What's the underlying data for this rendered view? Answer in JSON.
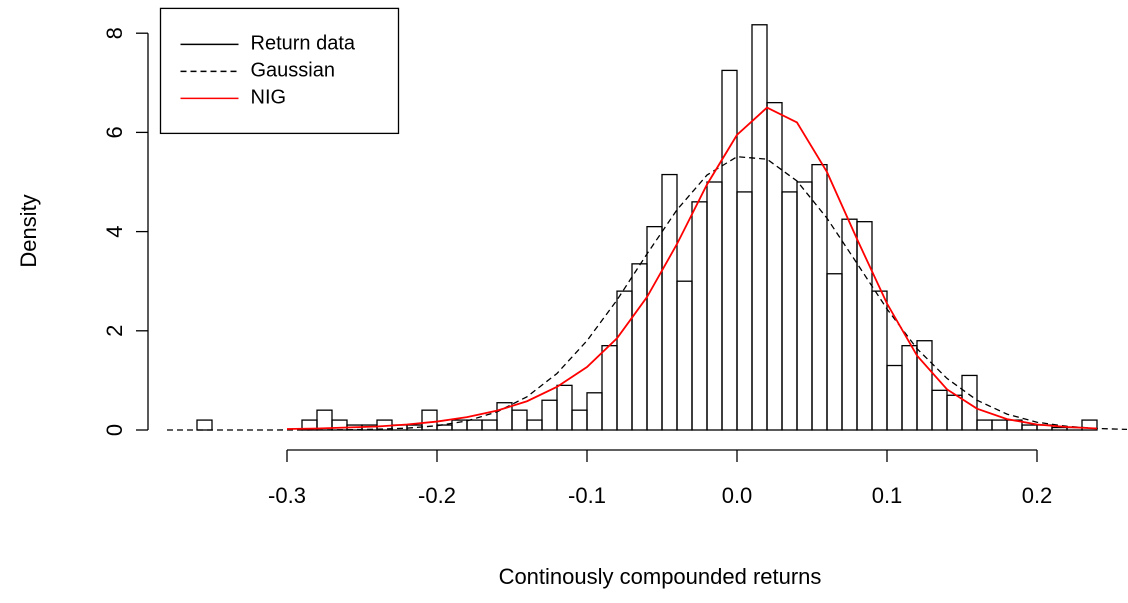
{
  "chart_data": {
    "type": "histogram",
    "xlabel": "Continously compounded returns",
    "ylabel": "Density",
    "xlim": [
      -0.385,
      0.26
    ],
    "ylim": [
      0,
      8.5
    ],
    "xticks": [
      -0.3,
      -0.2,
      -0.1,
      {
        "value": 0,
        "label": "0.0"
      },
      0.1,
      0.2
    ],
    "yticks": [
      0,
      2,
      4,
      6,
      8
    ],
    "legend": "top-left",
    "histogram": {
      "name": "Return data",
      "color": "#000000",
      "bins": [
        -0.36,
        -0.35,
        -0.34,
        -0.33,
        -0.32,
        -0.31,
        -0.3,
        -0.29,
        -0.28,
        -0.27,
        -0.26,
        -0.25,
        -0.24,
        -0.23,
        -0.22,
        -0.21,
        -0.2,
        -0.19,
        -0.18,
        -0.17,
        -0.16,
        -0.15,
        -0.14,
        -0.13,
        -0.12,
        -0.11,
        -0.1,
        -0.09,
        -0.08,
        -0.07,
        -0.06,
        -0.05,
        -0.04,
        -0.03,
        -0.02,
        -0.01,
        0.0,
        0.01,
        0.02,
        0.03,
        0.04,
        0.05,
        0.06,
        0.07,
        0.08,
        0.09,
        0.1,
        0.11,
        0.12,
        0.13,
        0.14,
        0.15,
        0.16,
        0.17,
        0.18,
        0.19,
        0.2,
        0.21,
        0.22,
        0.23,
        0.24
      ],
      "values": [
        0.2,
        0,
        0,
        0,
        0,
        0,
        0,
        0.2,
        0.4,
        0.2,
        0.1,
        0.1,
        0.2,
        0.1,
        0.1,
        0.4,
        0.1,
        0.2,
        0.2,
        0.2,
        0.55,
        0.4,
        0.2,
        0.6,
        0.9,
        0.4,
        0.75,
        1.7,
        2.8,
        3.35,
        4.1,
        5.15,
        3.0,
        4.6,
        5.0,
        7.25,
        4.8,
        8.17,
        6.6,
        4.8,
        5.0,
        5.35,
        3.15,
        4.25,
        4.2,
        2.8,
        1.3,
        1.7,
        1.8,
        0.8,
        0.7,
        1.1,
        0.2,
        0.2,
        0.2,
        0.1,
        0.1,
        0.05,
        0.05,
        0.2
      ]
    },
    "series": [
      {
        "name": "Gaussian",
        "color": "#000000",
        "linestyle": "dashed",
        "x": [
          -0.38,
          -0.36,
          -0.34,
          -0.32,
          -0.3,
          -0.28,
          -0.26,
          -0.24,
          -0.22,
          -0.2,
          -0.18,
          -0.16,
          -0.14,
          -0.12,
          -0.1,
          -0.08,
          -0.06,
          -0.04,
          -0.02,
          0.0,
          0.02,
          0.04,
          0.06,
          0.08,
          0.1,
          0.12,
          0.14,
          0.16,
          0.18,
          0.2,
          0.22,
          0.24,
          0.26
        ],
        "values": [
          0,
          0,
          0,
          0,
          0.001,
          0.002,
          0.005,
          0.015,
          0.037,
          0.086,
          0.183,
          0.365,
          0.67,
          1.14,
          1.8,
          2.62,
          3.55,
          4.44,
          5.14,
          5.51,
          5.46,
          5.02,
          4.27,
          3.36,
          2.44,
          1.64,
          1.04,
          0.6,
          0.32,
          0.157,
          0.074,
          0.031,
          0.012
        ]
      },
      {
        "name": "NIG",
        "color": "#ff0000",
        "linestyle": "solid",
        "x": [
          -0.3,
          -0.28,
          -0.26,
          -0.24,
          -0.22,
          -0.2,
          -0.18,
          -0.16,
          -0.14,
          -0.12,
          -0.1,
          -0.08,
          -0.06,
          -0.04,
          -0.02,
          0.0,
          0.02,
          0.04,
          0.06,
          0.08,
          0.1,
          0.12,
          0.14,
          0.16,
          0.18,
          0.2,
          0.22,
          0.24
        ],
        "values": [
          0.02,
          0.03,
          0.05,
          0.07,
          0.11,
          0.17,
          0.26,
          0.39,
          0.58,
          0.87,
          1.27,
          1.85,
          2.68,
          3.75,
          4.95,
          5.95,
          6.5,
          6.2,
          5.2,
          3.85,
          2.55,
          1.5,
          0.82,
          0.43,
          0.22,
          0.11,
          0.06,
          0.03
        ]
      }
    ]
  }
}
